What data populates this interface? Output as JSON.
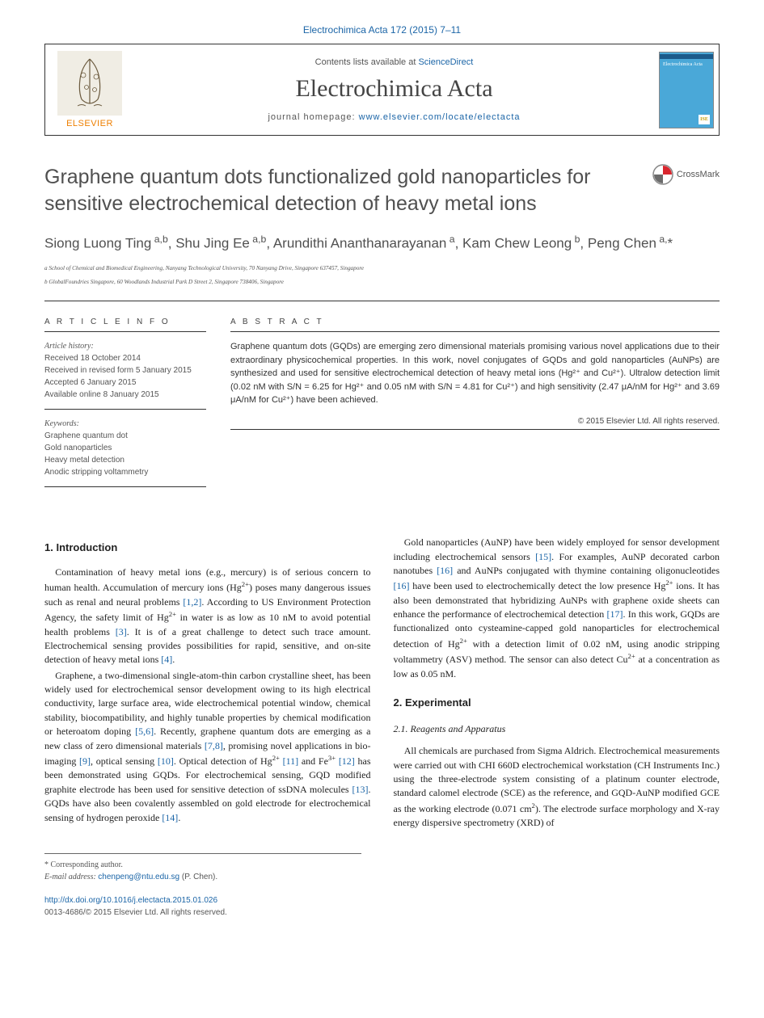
{
  "header": {
    "citation": "Electrochimica Acta 172 (2015) 7–11",
    "contents_prefix": "Contents lists available at ",
    "contents_link": "ScienceDirect",
    "journal_name": "Electrochimica Acta",
    "homepage_prefix": "journal homepage: ",
    "homepage_link": "www.elsevier.com/locate/electacta",
    "elsevier_label": "ELSEVIER",
    "cover_title": "Electrochimica Acta",
    "cover_ise": "ISE"
  },
  "crossmark": {
    "label": "CrossMark"
  },
  "title": "Graphene quantum dots functionalized gold nanoparticles for sensitive electrochemical detection of heavy metal ions",
  "authors_html": "Siong Luong Ting<sup> a,b</sup>, Shu Jing Ee<sup> a,b</sup>, Arundithi Ananthanarayanan<sup> a</sup>, Kam Chew Leong<sup> b</sup>, Peng Chen<sup> a,</sup>*",
  "affiliations": {
    "a": "a School of Chemical and Biomedical Engineering, Nanyang Technological University, 70 Nanyang Drive, Singapore 637457, Singapore",
    "b": "b GlobalFoundries Singapore, 60 Woodlands Industrial Park D Street 2, Singapore 738406, Singapore"
  },
  "info": {
    "head": "A R T I C L E   I N F O",
    "history_head": "Article history:",
    "h1": "Received 18 October 2014",
    "h2": "Received in revised form 5 January 2015",
    "h3": "Accepted 6 January 2015",
    "h4": "Available online 8 January 2015",
    "kw_head": "Keywords:",
    "k1": "Graphene quantum dot",
    "k2": "Gold nanoparticles",
    "k3": "Heavy metal detection",
    "k4": "Anodic stripping voltammetry"
  },
  "abstract": {
    "head": "A B S T R A C T",
    "text": "Graphene quantum dots (GQDs) are emerging zero dimensional materials promising various novel applications due to their extraordinary physicochemical properties. In this work, novel conjugates of GQDs and gold nanoparticles (AuNPs) are synthesized and used for sensitive electrochemical detection of heavy metal ions (Hg²⁺ and Cu²⁺). Ultralow detection limit (0.02 nM with S/N = 6.25 for Hg²⁺ and 0.05 nM with S/N = 4.81 for Cu²⁺) and high sensitivity (2.47 μA/nM for Hg²⁺ and 3.69 μA/nM for Cu²⁺) have been achieved.",
    "copyright": "© 2015 Elsevier Ltd. All rights reserved."
  },
  "sections": {
    "intro_head": "1. Introduction",
    "exp_head": "2. Experimental",
    "reagents_head": "2.1. Reagents and Apparatus"
  },
  "footer": {
    "corresponding": "* Corresponding author.",
    "email_label": "E-mail address: ",
    "email": "chenpeng@ntu.edu.sg",
    "email_suffix": " (P. Chen).",
    "doi_link": "http://dx.doi.org/10.1016/j.electacta.2015.01.026",
    "issn_line": "0013-4686/© 2015 Elsevier Ltd. All rights reserved."
  }
}
